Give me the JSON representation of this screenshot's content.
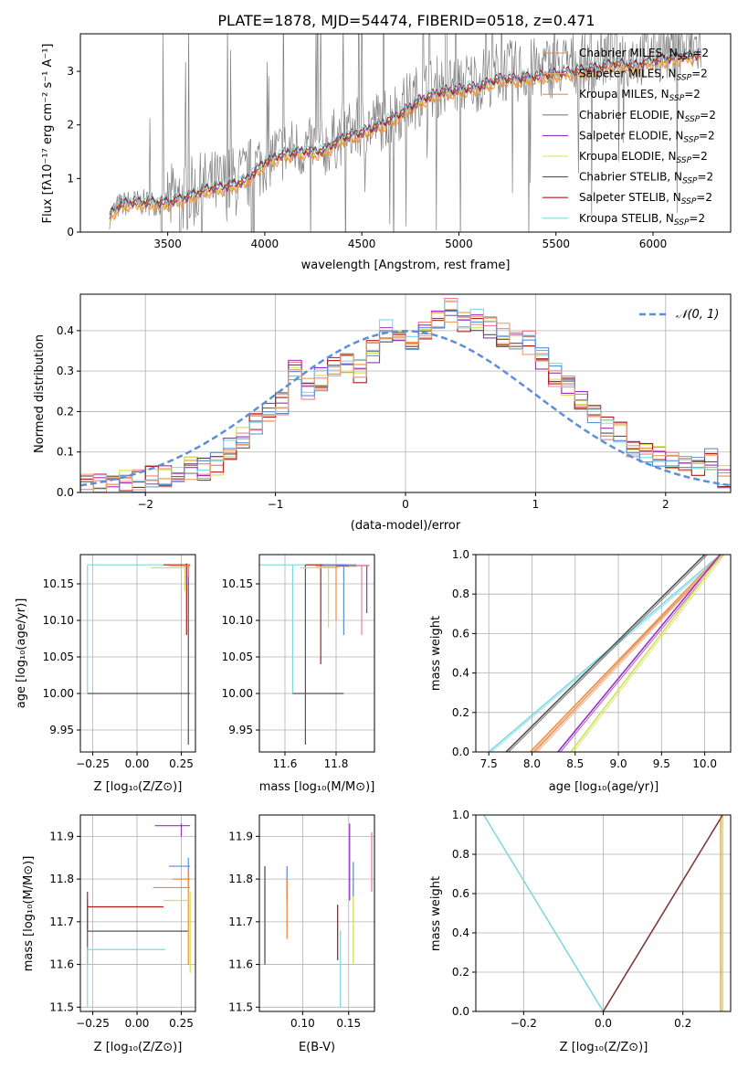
{
  "figure": {
    "title": "PLATE=1878, MJD=54474, FIBERID=0518, z=0.471"
  },
  "colors": {
    "chabrier_miles": "#f08a3c",
    "salpeter_miles": "#e8a070",
    "kroupa_miles": "#e89030",
    "chabrier_elodie": "#7f7f7f",
    "salpeter_elodie": "#9b30c0",
    "kroupa_elodie": "#d4e050",
    "chabrier_stelib": "#555555",
    "salpeter_stelib": "#b01c1c",
    "kroupa_stelib": "#80d8e0",
    "normal_curve": "#5b8fd8",
    "hist_pink": "#f08090",
    "hist_blue": "#5b8fd8"
  },
  "chart_data": [
    {
      "id": "spectrum",
      "type": "line",
      "xlabel": "wavelength [Angstrom, rest frame]",
      "ylabel": "Flux [fλ10⁻¹⁷ erg cm⁻² s⁻¹ A⁻¹]",
      "xlim": [
        3050,
        6400
      ],
      "ylim": [
        0,
        3.7
      ],
      "xticks": [
        3500,
        4000,
        4500,
        5000,
        5500,
        6000
      ],
      "yticks": [
        0,
        1,
        2,
        3
      ],
      "grid": false,
      "legend_position": "top-right",
      "legend": [
        "Chabrier MILES, N_SSP=2",
        "Salpeter MILES, N_SSP=2",
        "Kroupa MILES, N_SSP=2",
        "Chabrier ELODIE, N_SSP=2",
        "Salpeter ELODIE, N_SSP=2",
        "Kroupa ELODIE, N_SSP=2",
        "Chabrier STELIB, N_SSP=2",
        "Salpeter STELIB, N_SSP=2",
        "Kroupa STELIB, N_SSP=2"
      ],
      "model_continuum": {
        "x": [
          3200,
          3250,
          3300,
          3400,
          3500,
          3600,
          3700,
          3800,
          3900,
          4000,
          4100,
          4200,
          4300,
          4400,
          4500,
          4600,
          4700,
          4800,
          4900,
          5000,
          5100,
          5200,
          5300,
          5400,
          5500,
          5600,
          5700,
          5800,
          5900,
          6000,
          6100,
          6200
        ],
        "y": [
          0.3,
          0.5,
          0.55,
          0.55,
          0.55,
          0.65,
          0.8,
          0.85,
          0.95,
          1.3,
          1.45,
          1.5,
          1.5,
          1.75,
          1.85,
          2.0,
          2.2,
          2.45,
          2.6,
          2.65,
          2.7,
          2.85,
          2.85,
          2.9,
          2.95,
          3.0,
          3.05,
          3.15,
          3.1,
          3.2,
          3.25,
          3.3
        ]
      }
    },
    {
      "id": "residual_hist",
      "type": "line",
      "xlabel": "(data-model)/error",
      "ylabel": "Normed distribution",
      "xlim": [
        -2.5,
        2.5
      ],
      "ylim": [
        0,
        0.49
      ],
      "xticks": [
        -2,
        -1,
        0,
        1,
        2
      ],
      "yticks": [
        0.0,
        0.1,
        0.2,
        0.3,
        0.4
      ],
      "grid": true,
      "legend_position": "top-right",
      "legend": [
        "𝒩(0, 1)"
      ],
      "normal_curve": {
        "mu": 0,
        "sigma": 1
      },
      "bin_width": 0.1,
      "base_hist": {
        "x": [
          -2.5,
          -2.4,
          -2.3,
          -2.2,
          -2.1,
          -2.0,
          -1.9,
          -1.8,
          -1.7,
          -1.6,
          -1.5,
          -1.4,
          -1.3,
          -1.2,
          -1.1,
          -1.0,
          -0.9,
          -0.8,
          -0.7,
          -0.6,
          -0.5,
          -0.4,
          -0.3,
          -0.2,
          -0.1,
          0.0,
          0.1,
          0.2,
          0.3,
          0.4,
          0.5,
          0.6,
          0.7,
          0.8,
          0.9,
          1.0,
          1.1,
          1.2,
          1.3,
          1.4,
          1.5,
          1.6,
          1.7,
          1.8,
          1.9,
          2.0,
          2.1,
          2.2,
          2.3,
          2.4
        ],
        "y": [
          0.02,
          0.02,
          0.02,
          0.03,
          0.03,
          0.04,
          0.04,
          0.05,
          0.06,
          0.06,
          0.07,
          0.11,
          0.14,
          0.17,
          0.2,
          0.22,
          0.3,
          0.26,
          0.28,
          0.31,
          0.32,
          0.3,
          0.35,
          0.4,
          0.37,
          0.36,
          0.4,
          0.43,
          0.45,
          0.42,
          0.43,
          0.41,
          0.39,
          0.38,
          0.37,
          0.33,
          0.29,
          0.26,
          0.22,
          0.19,
          0.16,
          0.15,
          0.11,
          0.1,
          0.09,
          0.07,
          0.06,
          0.06,
          0.08,
          0.04
        ]
      }
    },
    {
      "id": "age_vs_Z",
      "type": "scatter",
      "xlabel": "Z [log₁₀(Z/Z⊙)]",
      "ylabel": "age  [log₁₀(age/yr)]",
      "xlim": [
        -0.32,
        0.33
      ],
      "ylim": [
        9.92,
        10.19
      ],
      "xticks": [
        -0.25,
        0.0,
        0.25
      ],
      "yticks": [
        9.95,
        10.0,
        10.05,
        10.1,
        10.15
      ],
      "grid": true
    },
    {
      "id": "age_vs_mass",
      "type": "scatter",
      "xlabel": "mass [log₁₀(M/M⊙)]",
      "ylabel": "",
      "xlim": [
        11.5,
        11.95
      ],
      "ylim": [
        9.92,
        10.19
      ],
      "xticks": [
        11.6,
        11.8
      ],
      "yticks": [
        9.95,
        10.0,
        10.05,
        10.1,
        10.15
      ],
      "grid": true
    },
    {
      "id": "massweight_vs_age",
      "type": "line",
      "xlabel": "age  [log₁₀(age/yr)]",
      "ylabel": "mass weight",
      "xlim": [
        7.35,
        10.3
      ],
      "ylim": [
        0,
        1.0
      ],
      "xticks": [
        7.5,
        8.0,
        8.5,
        9.0,
        9.5,
        10.0
      ],
      "yticks": [
        0.0,
        0.2,
        0.4,
        0.6,
        0.8,
        1.0
      ],
      "grid": true,
      "series": [
        {
          "key": "kroupa_stelib",
          "x": [
            7.5,
            10.18
          ],
          "y": [
            0,
            1
          ]
        },
        {
          "key": "chabrier_stelib",
          "x": [
            7.7,
            10.0
          ],
          "y": [
            0,
            1
          ]
        },
        {
          "key": "chabrier_miles",
          "x": [
            7.98,
            10.18
          ],
          "y": [
            0,
            1
          ]
        },
        {
          "key": "salpeter_miles",
          "x": [
            8.03,
            10.18
          ],
          "y": [
            0,
            1
          ]
        },
        {
          "key": "salpeter_elodie",
          "x": [
            8.3,
            10.18
          ],
          "y": [
            0,
            1
          ]
        },
        {
          "key": "kroupa_elodie",
          "x": [
            8.45,
            10.2
          ],
          "y": [
            0,
            1
          ]
        }
      ]
    },
    {
      "id": "mass_vs_Z",
      "type": "scatter",
      "xlabel": "Z [log₁₀(Z/Z⊙)]",
      "ylabel": "mass [log₁₀(M/M⊙)]",
      "xlim": [
        -0.32,
        0.33
      ],
      "ylim": [
        11.49,
        11.95
      ],
      "xticks": [
        -0.25,
        0.0,
        0.25
      ],
      "yticks": [
        11.5,
        11.6,
        11.7,
        11.8,
        11.9
      ],
      "grid": true
    },
    {
      "id": "mass_vs_ebv",
      "type": "scatter",
      "xlabel": "E(B-V)",
      "ylabel": "",
      "xlim": [
        0.053,
        0.178
      ],
      "ylim": [
        11.49,
        11.95
      ],
      "xticks": [
        0.1,
        0.15
      ],
      "yticks": [
        11.5,
        11.6,
        11.7,
        11.8,
        11.9
      ],
      "grid": true
    },
    {
      "id": "massweight_vs_Z",
      "type": "line",
      "xlabel": "Z [log₁₀(Z/Z⊙)]",
      "ylabel": "mass weight",
      "xlim": [
        -0.32,
        0.32
      ],
      "ylim": [
        0,
        1.0
      ],
      "xticks": [
        -0.2,
        0.0,
        0.2
      ],
      "yticks": [
        0.0,
        0.2,
        0.4,
        0.6,
        0.8,
        1.0
      ],
      "grid": true,
      "series": [
        {
          "key": "kroupa_stelib",
          "x": [
            -0.3,
            0.0
          ],
          "y": [
            1,
            0
          ]
        },
        {
          "key": "chabrier_stelib",
          "x": [
            0.0,
            0.3
          ],
          "y": [
            0,
            1
          ]
        },
        {
          "key": "kroupa_elodie",
          "x": [
            0.3,
            0.3
          ],
          "y": [
            0,
            1
          ]
        }
      ]
    }
  ],
  "tick_labels": {
    "spectrum_x": [
      "3500",
      "4000",
      "4500",
      "5000",
      "5500",
      "6000"
    ],
    "spectrum_y": [
      "0",
      "1",
      "2",
      "3"
    ],
    "hist_x": [
      "−2",
      "−1",
      "0",
      "1",
      "2"
    ],
    "hist_y": [
      "0.0",
      "0.1",
      "0.2",
      "0.3",
      "0.4"
    ],
    "z_x": [
      "−0.25",
      "0.00",
      "0.25"
    ],
    "age_y": [
      "9.95",
      "10.00",
      "10.05",
      "10.10",
      "10.15"
    ],
    "mass_x": [
      "11.6",
      "11.8"
    ],
    "mw_age_x": [
      "7.5",
      "8.0",
      "8.5",
      "9.0",
      "9.5",
      "10.0"
    ],
    "mw_y": [
      "0.0",
      "0.2",
      "0.4",
      "0.6",
      "0.8",
      "1.0"
    ],
    "mass_y": [
      "11.5",
      "11.6",
      "11.7",
      "11.8",
      "11.9"
    ],
    "ebv_x": [
      "0.10",
      "0.15"
    ],
    "mw_z_x": [
      "−0.2",
      "0.0",
      "0.2"
    ]
  }
}
